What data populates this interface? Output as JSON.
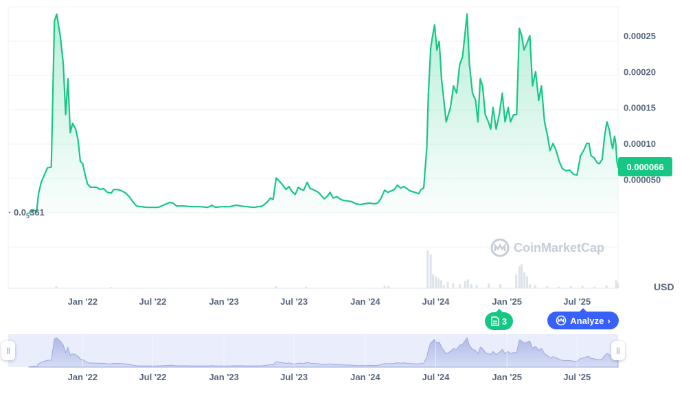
{
  "chart_data": {
    "type": "area",
    "currency": "USD",
    "current_price_label": "0.000066",
    "min_label_prefix": "0.0",
    "min_label_sub": "5",
    "min_label_suffix": "361",
    "y_ticks": [
      "0.000050",
      "0.00010",
      "0.00015",
      "0.00020",
      "0.00025"
    ],
    "y_tick_values": [
      5e-05,
      0.0001,
      0.00015,
      0.0002,
      0.00025
    ],
    "ylim": [
      3.6e-06,
      0.00029
    ],
    "x_tick_labels": [
      "Jan '22",
      "Jul '22",
      "Jan '23",
      "Jul '23",
      "Jan '24",
      "Jul '24",
      "Jan '25",
      "Jul '25"
    ],
    "x_tick_dates": [
      "2022-01-01",
      "2022-07-01",
      "2023-01-01",
      "2023-07-01",
      "2024-01-01",
      "2024-07-01",
      "2025-01-01",
      "2025-07-01"
    ],
    "x_range": [
      "2021-08-15",
      "2025-10-15"
    ],
    "series": [
      {
        "values": [
          [
            "2021-08-15",
            3.6e-06
          ],
          [
            "2021-08-27",
            7.2e-06
          ],
          [
            "2021-09-04",
            5.5e-06
          ],
          [
            "2021-09-09",
            3e-05
          ],
          [
            "2021-09-16",
            4.6e-05
          ],
          [
            "2021-09-24",
            5.6e-05
          ],
          [
            "2021-10-02",
            6.6e-05
          ],
          [
            "2021-10-12",
            6.7e-05
          ],
          [
            "2021-10-20",
            0.00027
          ],
          [
            "2021-10-26",
            0.00028
          ],
          [
            "2021-11-04",
            0.00025
          ],
          [
            "2021-11-12",
            0.00021
          ],
          [
            "2021-11-18",
            0.00014
          ],
          [
            "2021-11-24",
            0.00019
          ],
          [
            "2021-11-30",
            0.000115
          ],
          [
            "2021-12-06",
            0.000128
          ],
          [
            "2021-12-14",
            0.00012
          ],
          [
            "2021-12-20",
            0.000105
          ],
          [
            "2021-12-26",
            7.5e-05
          ],
          [
            "2022-01-01",
            7.2e-05
          ],
          [
            "2022-01-08",
            5.5e-05
          ],
          [
            "2022-01-14",
            4.3e-05
          ],
          [
            "2022-01-22",
            3.9e-05
          ],
          [
            "2022-02-06",
            3.9e-05
          ],
          [
            "2022-02-14",
            3.6e-05
          ],
          [
            "2022-02-24",
            3.7e-05
          ],
          [
            "2022-03-06",
            3.2e-05
          ],
          [
            "2022-03-16",
            3.1e-05
          ],
          [
            "2022-03-22",
            3.6e-05
          ],
          [
            "2022-04-01",
            3.6e-05
          ],
          [
            "2022-04-12",
            3.4e-05
          ],
          [
            "2022-04-22",
            3.1e-05
          ],
          [
            "2022-05-01",
            2.6e-05
          ],
          [
            "2022-05-12",
            1.8e-05
          ],
          [
            "2022-05-20",
            1.3e-05
          ],
          [
            "2022-06-01",
            1.2e-05
          ],
          [
            "2022-06-15",
            1.1e-05
          ],
          [
            "2022-07-01",
            1.1e-05
          ],
          [
            "2022-07-15",
            1.1e-05
          ],
          [
            "2022-08-01",
            1.5e-05
          ],
          [
            "2022-08-14",
            1.8e-05
          ],
          [
            "2022-08-22",
            1.7e-05
          ],
          [
            "2022-09-01",
            1.3e-05
          ],
          [
            "2022-09-20",
            1.3e-05
          ],
          [
            "2022-10-10",
            1.2e-05
          ],
          [
            "2022-11-01",
            1.2e-05
          ],
          [
            "2022-11-20",
            1.1e-05
          ],
          [
            "2022-12-01",
            1.4e-05
          ],
          [
            "2022-12-10",
            1.1e-05
          ],
          [
            "2022-12-25",
            1.2e-05
          ],
          [
            "2023-01-15",
            1.2e-05
          ],
          [
            "2023-02-01",
            1.4e-05
          ],
          [
            "2023-02-14",
            1.3e-05
          ],
          [
            "2023-03-01",
            1.2e-05
          ],
          [
            "2023-03-20",
            1.1e-05
          ],
          [
            "2023-04-10",
            1.3e-05
          ],
          [
            "2023-04-22",
            1.8e-05
          ],
          [
            "2023-05-01",
            2.4e-05
          ],
          [
            "2023-05-08",
            2.2e-05
          ],
          [
            "2023-05-16",
            5.2e-05
          ],
          [
            "2023-06-01",
            4.3e-05
          ],
          [
            "2023-06-10",
            3.6e-05
          ],
          [
            "2023-06-18",
            4e-05
          ],
          [
            "2023-06-26",
            3.3e-05
          ],
          [
            "2023-07-04",
            2.9e-05
          ],
          [
            "2023-07-12",
            3.9e-05
          ],
          [
            "2023-07-19",
            3.6e-05
          ],
          [
            "2023-07-26",
            3.5e-05
          ],
          [
            "2023-08-04",
            4.6e-05
          ],
          [
            "2023-08-12",
            3.7e-05
          ],
          [
            "2023-08-19",
            3.6e-05
          ],
          [
            "2023-08-26",
            3.4e-05
          ],
          [
            "2023-09-02",
            3.2e-05
          ],
          [
            "2023-09-10",
            2.7e-05
          ],
          [
            "2023-09-17",
            2.3e-05
          ],
          [
            "2023-09-24",
            2.6e-05
          ],
          [
            "2023-10-02",
            3.2e-05
          ],
          [
            "2023-10-10",
            2.4e-05
          ],
          [
            "2023-10-20",
            2.6e-05
          ],
          [
            "2023-10-27",
            2.3e-05
          ],
          [
            "2023-11-04",
            2.1e-05
          ],
          [
            "2023-11-16",
            2e-05
          ],
          [
            "2023-11-27",
            1.9e-05
          ],
          [
            "2023-12-08",
            1.6e-05
          ],
          [
            "2023-12-18",
            1.5e-05
          ],
          [
            "2023-12-30",
            1.6e-05
          ],
          [
            "2024-01-12",
            1.7e-05
          ],
          [
            "2024-01-24",
            1.6e-05
          ],
          [
            "2024-02-02",
            1.7e-05
          ],
          [
            "2024-02-10",
            2.3e-05
          ],
          [
            "2024-02-20",
            3.5e-05
          ],
          [
            "2024-02-28",
            3.2e-05
          ],
          [
            "2024-03-08",
            3.4e-05
          ],
          [
            "2024-03-16",
            3.6e-05
          ],
          [
            "2024-03-24",
            4.2e-05
          ],
          [
            "2024-04-01",
            3.8e-05
          ],
          [
            "2024-04-10",
            4e-05
          ],
          [
            "2024-04-18",
            3.7e-05
          ],
          [
            "2024-04-26",
            3.4e-05
          ],
          [
            "2024-05-08",
            3.2e-05
          ],
          [
            "2024-05-18",
            3e-05
          ],
          [
            "2024-05-24",
            3.6e-05
          ],
          [
            "2024-05-31",
            3.8e-05
          ],
          [
            "2024-06-08",
            9.5e-05
          ],
          [
            "2024-06-12",
            0.00017
          ],
          [
            "2024-06-18",
            0.000233
          ],
          [
            "2024-06-23",
            0.00025
          ],
          [
            "2024-06-28",
            0.000265
          ],
          [
            "2024-07-04",
            0.00023
          ],
          [
            "2024-07-10",
            0.000242
          ],
          [
            "2024-07-16",
            0.00019
          ],
          [
            "2024-07-22",
            0.00016
          ],
          [
            "2024-07-28",
            0.00013
          ],
          [
            "2024-08-08",
            0.00015
          ],
          [
            "2024-08-16",
            0.00018
          ],
          [
            "2024-08-24",
            0.00017
          ],
          [
            "2024-09-01",
            0.00021
          ],
          [
            "2024-09-08",
            0.00022
          ],
          [
            "2024-09-14",
            0.00025
          ],
          [
            "2024-09-20",
            0.00028
          ],
          [
            "2024-09-26",
            0.00021
          ],
          [
            "2024-10-04",
            0.00017
          ],
          [
            "2024-10-12",
            0.00016
          ],
          [
            "2024-10-18",
            0.00013
          ],
          [
            "2024-10-24",
            0.00019
          ],
          [
            "2024-10-30",
            0.00018
          ],
          [
            "2024-11-06",
            0.00014
          ],
          [
            "2024-11-14",
            0.00013
          ],
          [
            "2024-11-20",
            0.00012
          ],
          [
            "2024-11-26",
            0.00015
          ],
          [
            "2024-12-04",
            0.00012
          ],
          [
            "2024-12-12",
            0.00014
          ],
          [
            "2024-12-20",
            0.00017
          ],
          [
            "2024-12-27",
            0.00013
          ],
          [
            "2025-01-04",
            0.00015
          ],
          [
            "2025-01-10",
            0.00013
          ],
          [
            "2025-01-18",
            0.00014
          ],
          [
            "2025-01-26",
            0.00014
          ],
          [
            "2025-02-02",
            0.00026
          ],
          [
            "2025-02-08",
            0.00025
          ],
          [
            "2025-02-14",
            0.00023
          ],
          [
            "2025-02-22",
            0.00024
          ],
          [
            "2025-03-01",
            0.00025
          ],
          [
            "2025-03-08",
            0.00018
          ],
          [
            "2025-03-16",
            0.0002
          ],
          [
            "2025-03-24",
            0.00016
          ],
          [
            "2025-03-31",
            0.00018
          ],
          [
            "2025-04-08",
            0.00013
          ],
          [
            "2025-04-16",
            0.00011
          ],
          [
            "2025-04-22",
            9e-05
          ],
          [
            "2025-04-30",
            0.0001
          ],
          [
            "2025-05-08",
            9e-05
          ],
          [
            "2025-05-16",
            7.5e-05
          ],
          [
            "2025-05-24",
            6.5e-05
          ],
          [
            "2025-06-02",
            6.2e-05
          ],
          [
            "2025-06-12",
            6.3e-05
          ],
          [
            "2025-06-22",
            5.7e-05
          ],
          [
            "2025-07-01",
            5.6e-05
          ],
          [
            "2025-07-10",
            8.3e-05
          ],
          [
            "2025-07-18",
            9e-05
          ],
          [
            "2025-07-26",
            0.0001
          ],
          [
            "2025-08-01",
            0.0001
          ],
          [
            "2025-08-06",
            8.3e-05
          ],
          [
            "2025-08-14",
            8e-05
          ],
          [
            "2025-08-22",
            7.3e-05
          ],
          [
            "2025-08-28",
            7.2e-05
          ],
          [
            "2025-09-04",
            7.8e-05
          ],
          [
            "2025-09-10",
            0.00011
          ],
          [
            "2025-09-16",
            0.00013
          ],
          [
            "2025-09-22",
            0.00012
          ],
          [
            "2025-09-28",
            0.0001
          ],
          [
            "2025-10-01",
            9.3e-05
          ],
          [
            "2025-10-06",
            0.00011
          ],
          [
            "2025-10-09",
            0.0001
          ],
          [
            "2025-10-12",
            7.5e-05
          ],
          [
            "2025-10-15",
            6.6e-05
          ]
        ]
      }
    ],
    "volume": [
      [
        "2021-10-25",
        0.05
      ],
      [
        "2022-03-15",
        0.03
      ],
      [
        "2023-05-15",
        0.05
      ],
      [
        "2023-08-01",
        0.04
      ],
      [
        "2024-02-20",
        0.06
      ],
      [
        "2024-03-01",
        0.05
      ],
      [
        "2024-06-10",
        0.95
      ],
      [
        "2024-06-18",
        0.85
      ],
      [
        "2024-06-24",
        0.35
      ],
      [
        "2024-07-01",
        0.3
      ],
      [
        "2024-07-08",
        0.25
      ],
      [
        "2024-07-15",
        0.2
      ],
      [
        "2024-07-22",
        0.08
      ],
      [
        "2024-08-01",
        0.15
      ],
      [
        "2024-08-15",
        0.12
      ],
      [
        "2024-09-01",
        0.1
      ],
      [
        "2024-09-15",
        0.18
      ],
      [
        "2024-09-22",
        0.22
      ],
      [
        "2024-10-01",
        0.1
      ],
      [
        "2024-10-15",
        0.08
      ],
      [
        "2024-11-15",
        0.12
      ],
      [
        "2024-12-15",
        0.1
      ],
      [
        "2025-01-25",
        0.35
      ],
      [
        "2025-02-02",
        0.55
      ],
      [
        "2025-02-08",
        0.6
      ],
      [
        "2025-02-15",
        0.4
      ],
      [
        "2025-02-22",
        0.3
      ],
      [
        "2025-03-01",
        0.1
      ],
      [
        "2025-03-15",
        0.08
      ],
      [
        "2025-04-15",
        0.05
      ],
      [
        "2025-05-15",
        0.04
      ],
      [
        "2025-06-15",
        0.05
      ],
      [
        "2025-07-15",
        0.06
      ],
      [
        "2025-08-15",
        0.04
      ],
      [
        "2025-09-15",
        0.07
      ],
      [
        "2025-10-10",
        0.2
      ],
      [
        "2025-10-15",
        0.12
      ]
    ]
  },
  "watermark": "CoinMarketCap",
  "news_count": "3",
  "analyze_label": "Analyze",
  "navigator": {
    "left_handle": "||",
    "right_handle": "||"
  },
  "colors": {
    "line": "#16c784",
    "price_tag_bg": "#16c784",
    "analyze_bg": "#3861fb",
    "grid": "#eff2f5",
    "navigator_bg": "#e9edfc"
  }
}
